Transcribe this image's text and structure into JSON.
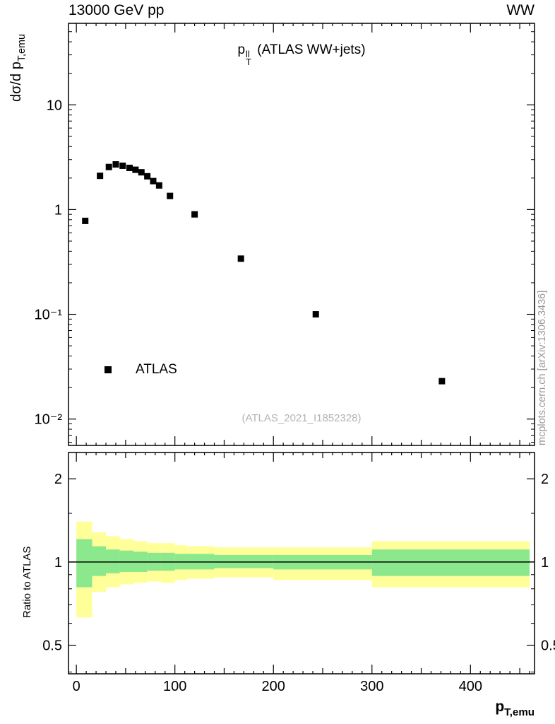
{
  "header": {
    "left": "13000 GeV pp",
    "right": "WW"
  },
  "plot": {
    "inner_title": {
      "p": "p",
      "sup": "ll",
      "sub": "T",
      "rest": "(ATLAS WW+jets)"
    },
    "legend_label": "ATLAS",
    "watermark": "(ATLAS_2021_I1852328)",
    "side_note": "mcplots.cern.ch [arXiv:1306.3436]",
    "ylabel_main": "dσ/d p",
    "ylabel_sub": "T,emu",
    "ratio_ylabel": "Ratio to ATLAS",
    "xlabel_main": "p",
    "xlabel_sub": "T,emu"
  },
  "chart_data": [
    {
      "type": "scatter",
      "title": "p_T^ll (ATLAS WW+jets)",
      "xlabel": "p_T,emu",
      "ylabel": "dσ/d p_T,emu",
      "xscale": "linear",
      "yscale": "log",
      "xlim": [
        -8,
        465
      ],
      "ylim": [
        0.0056,
        60
      ],
      "xticks": [
        0,
        100,
        200,
        300,
        400
      ],
      "yticks": [
        {
          "v": 10,
          "label": "10"
        },
        {
          "v": 1,
          "label": "1"
        },
        {
          "v": 0.1,
          "label": "10⁻¹"
        },
        {
          "v": 0.01,
          "label": "10⁻²"
        }
      ],
      "series": [
        {
          "name": "ATLAS",
          "marker": "square",
          "color": "#000000",
          "points": [
            [
              9,
              0.78
            ],
            [
              24,
              2.1
            ],
            [
              33,
              2.55
            ],
            [
              40,
              2.7
            ],
            [
              47,
              2.62
            ],
            [
              54,
              2.5
            ],
            [
              60,
              2.4
            ],
            [
              66,
              2.27
            ],
            [
              72,
              2.08
            ],
            [
              78,
              1.87
            ],
            [
              84,
              1.7
            ],
            [
              95,
              1.35
            ],
            [
              120,
              0.9
            ],
            [
              167,
              0.34
            ],
            [
              243,
              0.1
            ],
            [
              371,
              0.023
            ]
          ]
        }
      ]
    },
    {
      "type": "bands",
      "ylabel": "Ratio to ATLAS",
      "yscale": "log",
      "ylim": [
        0.394,
        2.49
      ],
      "yticks": [
        {
          "v": 2,
          "label": "2"
        },
        {
          "v": 1,
          "label": "1"
        },
        {
          "v": 0.5,
          "label": "0.5"
        }
      ],
      "yminor": [
        0.4,
        0.6,
        0.7,
        0.8,
        0.9,
        1.5
      ],
      "reference_line": 1,
      "band_colors": {
        "outer": "#ffff99",
        "inner": "#8ce88c"
      },
      "bins": [
        {
          "x0": 0,
          "x1": 16,
          "yellow": [
            0.63,
            1.4
          ],
          "green": [
            0.81,
            1.21
          ]
        },
        {
          "x0": 16,
          "x1": 30,
          "yellow": [
            0.78,
            1.28
          ],
          "green": [
            0.89,
            1.14
          ]
        },
        {
          "x0": 30,
          "x1": 44,
          "yellow": [
            0.81,
            1.24
          ],
          "green": [
            0.91,
            1.11
          ]
        },
        {
          "x0": 44,
          "x1": 58,
          "yellow": [
            0.83,
            1.21
          ],
          "green": [
            0.92,
            1.1
          ]
        },
        {
          "x0": 58,
          "x1": 72,
          "yellow": [
            0.84,
            1.19
          ],
          "green": [
            0.92,
            1.09
          ]
        },
        {
          "x0": 72,
          "x1": 86,
          "yellow": [
            0.85,
            1.17
          ],
          "green": [
            0.93,
            1.08
          ]
        },
        {
          "x0": 86,
          "x1": 100,
          "yellow": [
            0.84,
            1.17
          ],
          "green": [
            0.93,
            1.08
          ]
        },
        {
          "x0": 100,
          "x1": 112,
          "yellow": [
            0.86,
            1.15
          ],
          "green": [
            0.94,
            1.07
          ]
        },
        {
          "x0": 112,
          "x1": 140,
          "yellow": [
            0.87,
            1.14
          ],
          "green": [
            0.94,
            1.07
          ]
        },
        {
          "x0": 140,
          "x1": 200,
          "yellow": [
            0.88,
            1.13
          ],
          "green": [
            0.95,
            1.06
          ]
        },
        {
          "x0": 200,
          "x1": 300,
          "yellow": [
            0.86,
            1.13
          ],
          "green": [
            0.94,
            1.06
          ]
        },
        {
          "x0": 300,
          "x1": 460,
          "yellow": [
            0.81,
            1.19
          ],
          "green": [
            0.89,
            1.11
          ]
        }
      ]
    }
  ]
}
